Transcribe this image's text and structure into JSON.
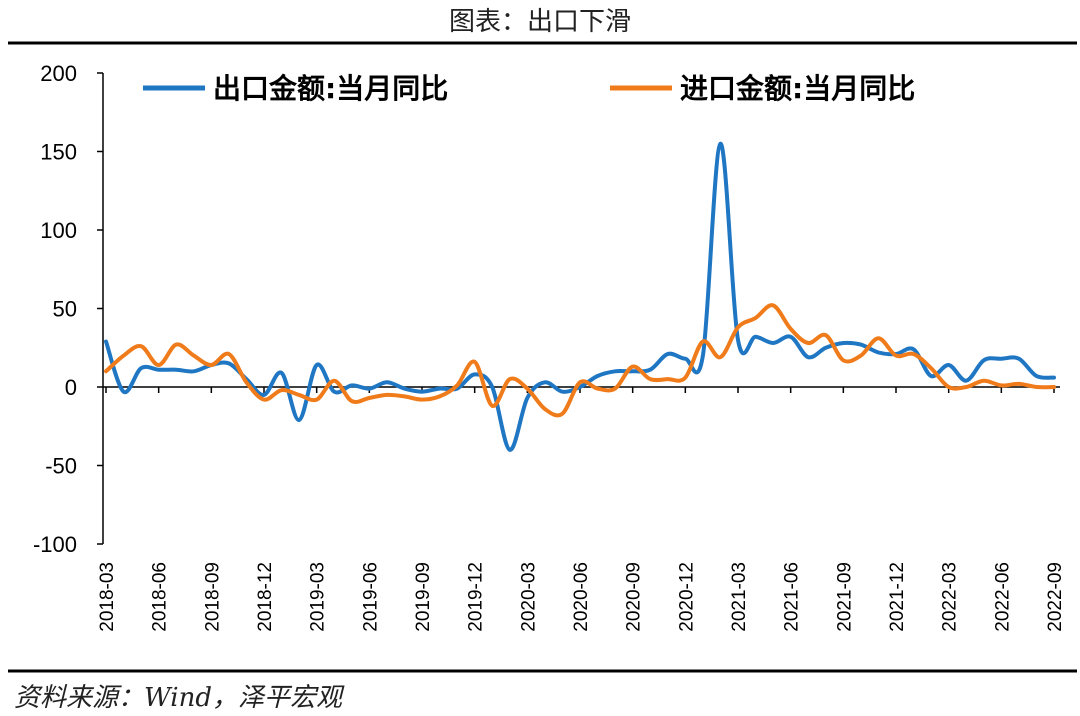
{
  "chart_data": {
    "type": "line",
    "title": "图表：出口下滑",
    "source": "资料来源：Wind，泽平宏观",
    "ylim": [
      -100,
      200
    ],
    "yticks": [
      "200",
      "150",
      "100",
      "50",
      "0",
      "-50",
      "-100"
    ],
    "ytick_values": [
      200,
      150,
      100,
      50,
      0,
      -50,
      -100
    ],
    "legend_position": "top",
    "x": [
      "2018-03",
      "2018-04",
      "2018-05",
      "2018-06",
      "2018-07",
      "2018-08",
      "2018-09",
      "2018-10",
      "2018-11",
      "2018-12",
      "2019-01",
      "2019-02",
      "2019-03",
      "2019-04",
      "2019-05",
      "2019-06",
      "2019-07",
      "2019-08",
      "2019-09",
      "2019-10",
      "2019-11",
      "2019-12",
      "2020-01",
      "2020-02",
      "2020-03",
      "2020-04",
      "2020-05",
      "2020-06",
      "2020-07",
      "2020-08",
      "2020-09",
      "2020-10",
      "2020-11",
      "2020-12",
      "2021-01",
      "2021-02",
      "2021-03",
      "2021-04",
      "2021-05",
      "2021-06",
      "2021-07",
      "2021-08",
      "2021-09",
      "2021-10",
      "2021-11",
      "2021-12",
      "2022-01",
      "2022-02",
      "2022-03",
      "2022-04",
      "2022-05",
      "2022-06",
      "2022-07",
      "2022-08",
      "2022-09"
    ],
    "xtick_labels": [
      "2018-03",
      "2018-06",
      "2018-09",
      "2018-12",
      "2019-03",
      "2019-06",
      "2019-09",
      "2019-12",
      "2020-03",
      "2020-06",
      "2020-09",
      "2020-12",
      "2021-03",
      "2021-06",
      "2021-09",
      "2021-12",
      "2022-03",
      "2022-06",
      "2022-09"
    ],
    "series": [
      {
        "name": "出口金额:当月同比",
        "color": "#1f77c4",
        "values": [
          29,
          -3,
          12,
          11,
          11,
          10,
          14,
          15,
          5,
          -5,
          9,
          -21,
          14,
          -3,
          1,
          -1,
          3,
          -1,
          -3,
          -1,
          -1,
          8,
          0,
          -40,
          -7,
          3,
          -3,
          0,
          7,
          10,
          10,
          11,
          21,
          18,
          20,
          155,
          30,
          32,
          28,
          32,
          19,
          25,
          28,
          27,
          22,
          21,
          24,
          7,
          14,
          4,
          17,
          18,
          18,
          7,
          6
        ]
      },
      {
        "name": "进口金额:当月同比",
        "color": "#f07b1a",
        "values": [
          10,
          20,
          26,
          14,
          27,
          20,
          14,
          21,
          3,
          -8,
          -2,
          -5,
          -8,
          4,
          -9,
          -7,
          -5,
          -6,
          -8,
          -6,
          1,
          16,
          -12,
          5,
          -1,
          -14,
          -17,
          3,
          -1,
          -1,
          13,
          5,
          5,
          6,
          29,
          19,
          38,
          44,
          52,
          37,
          28,
          33,
          17,
          20,
          31,
          20,
          21,
          12,
          0,
          0,
          4,
          1,
          2,
          0,
          0
        ]
      }
    ]
  }
}
